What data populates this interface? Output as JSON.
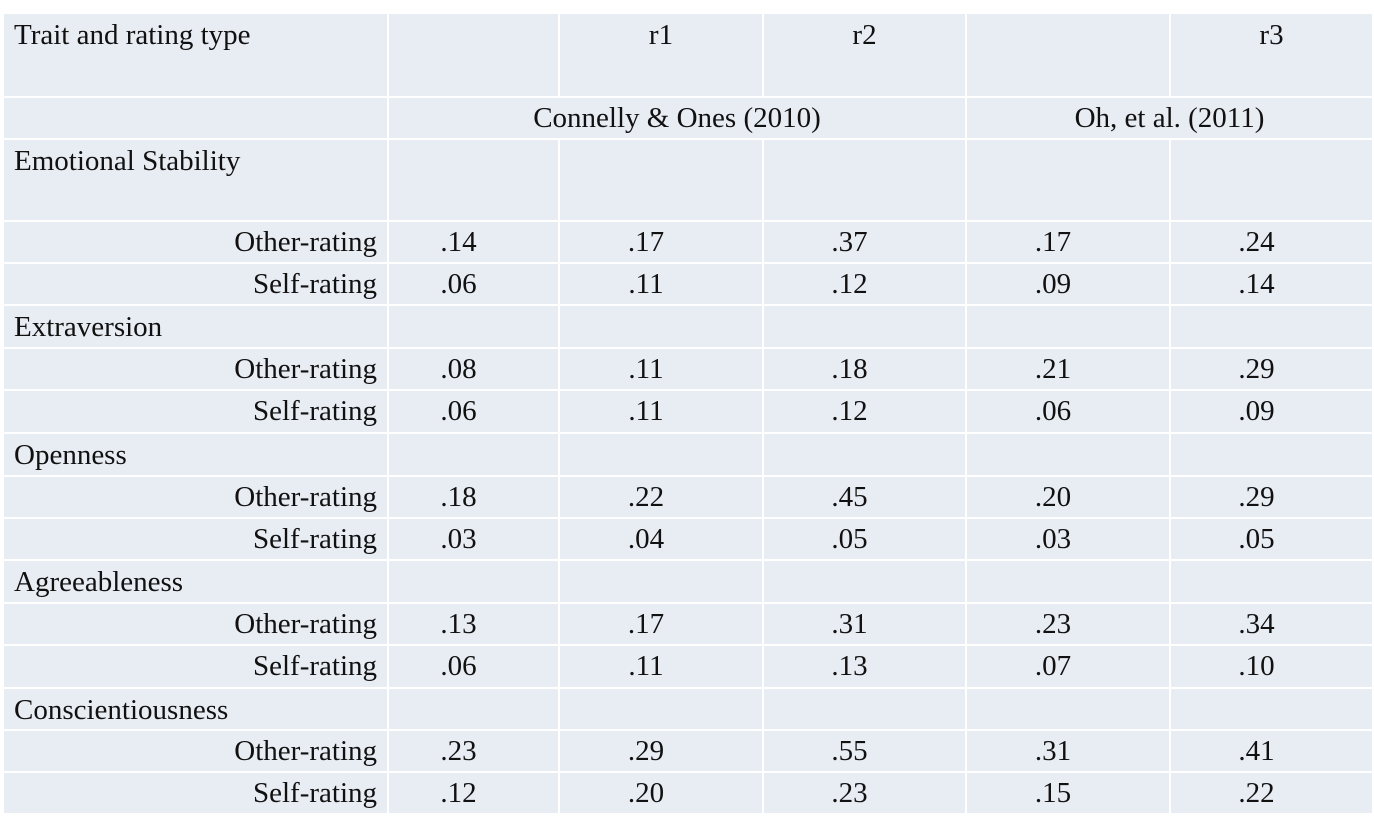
{
  "header": {
    "trait_col": "Trait and rating type",
    "columns": [
      "",
      "r1",
      "r2",
      "",
      "r3"
    ],
    "sources": [
      "Connelly & Ones (2010)",
      "Oh, et al. (2011)"
    ]
  },
  "traits": [
    {
      "name": "Emotional Stability",
      "rows": [
        {
          "label": "Other-rating",
          "values": [
            ".14",
            ".17",
            ".37",
            ".17",
            ".24"
          ]
        },
        {
          "label": "Self-rating",
          "values": [
            ".06",
            ".11",
            ".12",
            ".09",
            ".14"
          ]
        }
      ]
    },
    {
      "name": "Extraversion",
      "rows": [
        {
          "label": "Other-rating",
          "values": [
            ".08",
            ".11",
            ".18",
            ".21",
            ".29"
          ]
        },
        {
          "label": "Self-rating",
          "values": [
            ".06",
            ".11",
            ".12",
            ".06",
            ".09"
          ]
        }
      ]
    },
    {
      "name": "Openness",
      "rows": [
        {
          "label": "Other-rating",
          "values": [
            ".18",
            ".22",
            ".45",
            ".20",
            ".29"
          ]
        },
        {
          "label": "Self-rating",
          "values": [
            ".03",
            ".04",
            ".05",
            ".03",
            ".05"
          ]
        }
      ]
    },
    {
      "name": "Agreeableness",
      "rows": [
        {
          "label": "Other-rating",
          "values": [
            ".13",
            ".17",
            ".31",
            ".23",
            ".34"
          ]
        },
        {
          "label": "Self-rating",
          "values": [
            ".06",
            ".11",
            ".13",
            ".07",
            ".10"
          ]
        }
      ]
    },
    {
      "name": "Conscientiousness",
      "rows": [
        {
          "label": "Other-rating",
          "values": [
            ".23",
            ".29",
            ".55",
            ".31",
            ".41"
          ]
        },
        {
          "label": "Self-rating",
          "values": [
            ".12",
            ".20",
            ".23",
            ".15",
            ".22"
          ]
        }
      ]
    }
  ]
}
